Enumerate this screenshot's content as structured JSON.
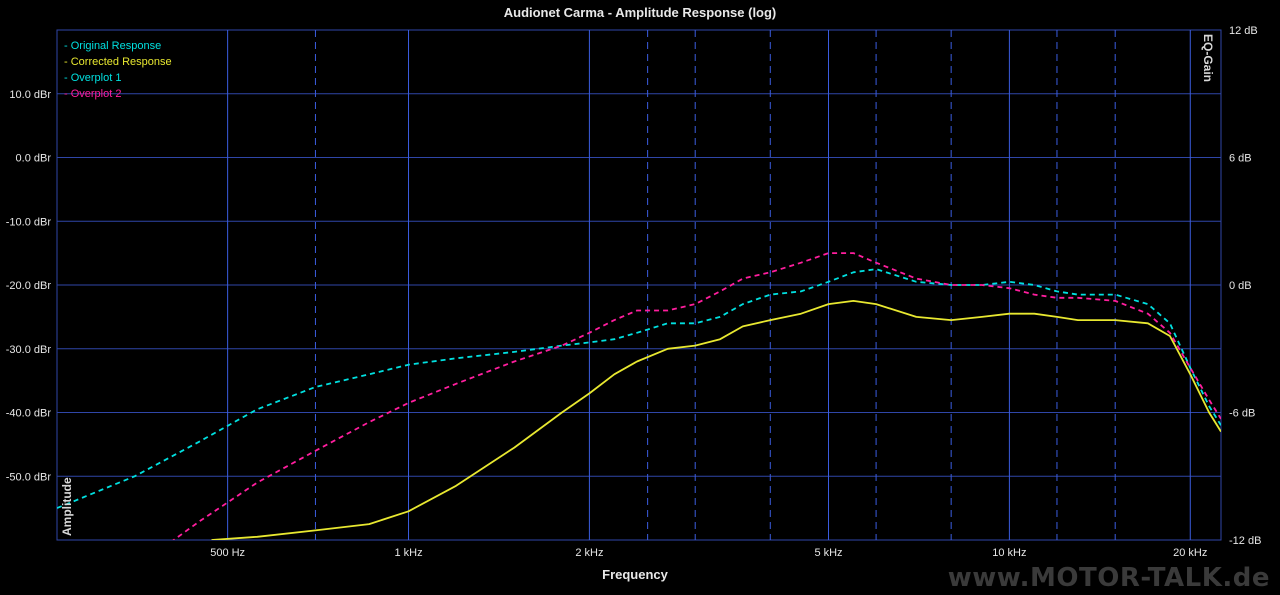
{
  "chart_data": {
    "type": "line",
    "title": "Audionet Carma - Amplitude Response (log)",
    "xlabel": "Frequency",
    "ylabel": "Amplitude",
    "y2label": "EQ-Gain",
    "x_scale": "log",
    "x_range_hz": [
      260,
      22500
    ],
    "ylim": [
      -60,
      20
    ],
    "y2lim": [
      -12,
      12
    ],
    "x_ticks": [
      {
        "hz": 500,
        "label": "500 Hz"
      },
      {
        "hz": 1000,
        "label": "1 kHz"
      },
      {
        "hz": 2000,
        "label": "2 kHz"
      },
      {
        "hz": 5000,
        "label": "5 kHz"
      },
      {
        "hz": 10000,
        "label": "10 kHz"
      },
      {
        "hz": 20000,
        "label": "20 kHz"
      }
    ],
    "x_minor_ticks_hz": [
      700,
      2500,
      3000,
      4000,
      6000,
      8000,
      12000,
      15000
    ],
    "y_ticks": [
      {
        "value": 10,
        "label": "10.0 dBr"
      },
      {
        "value": 0,
        "label": "0.0 dBr"
      },
      {
        "value": -10,
        "label": "-10.0 dBr"
      },
      {
        "value": -20,
        "label": "-20.0 dBr"
      },
      {
        "value": -30,
        "label": "-30.0 dBr"
      },
      {
        "value": -40,
        "label": "-40.0 dBr"
      },
      {
        "value": -50,
        "label": "-50.0 dBr"
      }
    ],
    "y2_ticks": [
      {
        "value": 12,
        "label": "12 dB"
      },
      {
        "value": 6,
        "label": "6 dB"
      },
      {
        "value": 0,
        "label": "0 dB"
      },
      {
        "value": -6,
        "label": "-6 dB"
      },
      {
        "value": -12,
        "label": "-12 dB"
      }
    ],
    "grid": true,
    "legend_position": "top-left",
    "series": [
      {
        "name": "Original Response",
        "color": "#00e0e0",
        "style": "dashed",
        "x": [],
        "y": []
      },
      {
        "name": "Corrected Response",
        "color": "#e8e830",
        "style": "solid",
        "x": [
          470,
          560,
          700,
          860,
          1000,
          1200,
          1500,
          1800,
          2000,
          2200,
          2400,
          2700,
          3000,
          3300,
          3600,
          4000,
          4500,
          5000,
          5500,
          6000,
          7000,
          8000,
          9000,
          10000,
          11000,
          12000,
          13000,
          15000,
          17000,
          18500,
          20000,
          21500,
          22500
        ],
        "y": [
          -60,
          -59.5,
          -58.5,
          -57.5,
          -55.5,
          -51.5,
          -45.5,
          -40,
          -37,
          -34,
          -32,
          -30,
          -29.5,
          -28.5,
          -26.5,
          -25.5,
          -24.5,
          -23,
          -22.5,
          -23,
          -25,
          -25.5,
          -25,
          -24.5,
          -24.5,
          -25,
          -25.5,
          -25.5,
          -26,
          -28,
          -34,
          -40,
          -43
        ]
      },
      {
        "name": "Overplot 1",
        "color": "#00e0e0",
        "style": "dashed",
        "x": [
          260,
          350,
          450,
          560,
          700,
          860,
          1000,
          1200,
          1500,
          1800,
          2000,
          2200,
          2400,
          2700,
          3000,
          3300,
          3600,
          4000,
          4500,
          5000,
          5500,
          6000,
          7000,
          8000,
          9000,
          10000,
          11000,
          12000,
          13000,
          15000,
          17000,
          18500,
          20000,
          21500,
          22500
        ],
        "y": [
          -55,
          -50,
          -44.5,
          -39.5,
          -36,
          -34,
          -32.5,
          -31.5,
          -30.5,
          -29.5,
          -29,
          -28.5,
          -27.5,
          -26,
          -26,
          -25,
          -23,
          -21.5,
          -21,
          -19.5,
          -18,
          -17.5,
          -19.5,
          -20,
          -20,
          -19.5,
          -20,
          -21,
          -21.5,
          -21.5,
          -23,
          -26,
          -33,
          -39,
          -42
        ]
      },
      {
        "name": "Overplot 2",
        "color": "#ff1e9e",
        "style": "dashed",
        "x": [
          380,
          450,
          560,
          700,
          860,
          1000,
          1200,
          1500,
          1800,
          2000,
          2200,
          2400,
          2700,
          3000,
          3300,
          3600,
          4000,
          4500,
          5000,
          5500,
          6000,
          7000,
          8000,
          9000,
          10000,
          11000,
          12000,
          13000,
          15000,
          17000,
          18500,
          20000,
          21500,
          22500
        ],
        "y": [
          -62,
          -57,
          -51,
          -46,
          -41.5,
          -38.5,
          -35.5,
          -32,
          -29.5,
          -27.5,
          -25.5,
          -24,
          -24,
          -23,
          -21,
          -19,
          -18,
          -16.5,
          -15,
          -15,
          -16.5,
          -19,
          -20,
          -20,
          -20.5,
          -21.5,
          -22,
          -22,
          -22.5,
          -24.5,
          -27.5,
          -33,
          -38,
          -41
        ]
      }
    ]
  }
}
